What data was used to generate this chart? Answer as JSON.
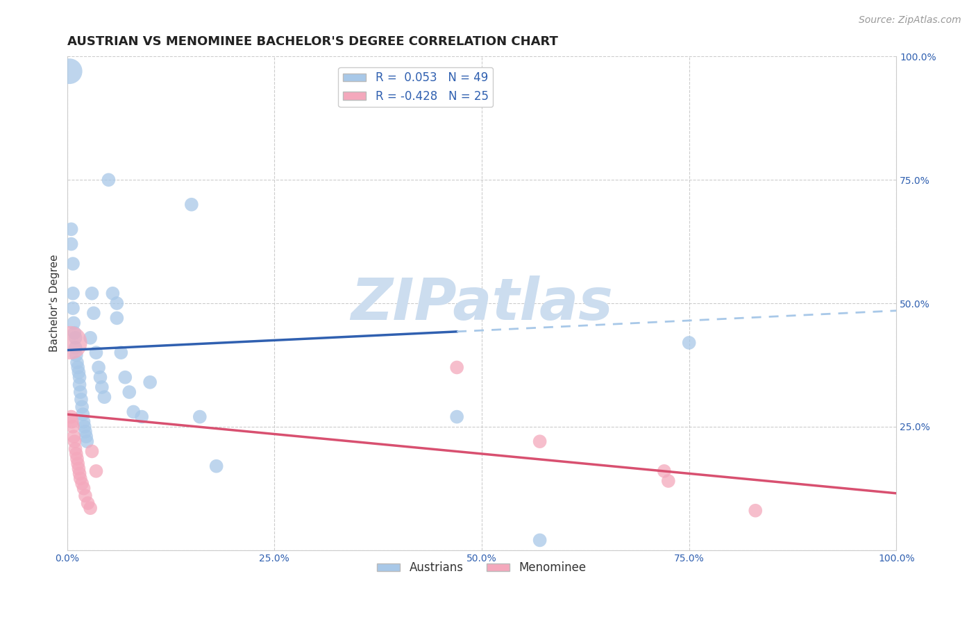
{
  "title": "AUSTRIAN VS MENOMINEE BACHELOR'S DEGREE CORRELATION CHART",
  "source": "Source: ZipAtlas.com",
  "ylabel": "Bachelor's Degree",
  "watermark": "ZIPatlas",
  "legend_blue_label": "Austrians",
  "legend_pink_label": "Menominee",
  "blue_R": 0.053,
  "blue_N": 49,
  "pink_R": -0.428,
  "pink_N": 25,
  "blue_color": "#a8c8e8",
  "pink_color": "#f4a8bc",
  "blue_line_color": "#3060b0",
  "pink_line_color": "#d85070",
  "blue_points": [
    [
      0.3,
      97.0
    ],
    [
      0.5,
      65.0
    ],
    [
      0.5,
      62.0
    ],
    [
      0.7,
      58.0
    ],
    [
      0.7,
      52.0
    ],
    [
      0.7,
      49.0
    ],
    [
      0.8,
      46.0
    ],
    [
      0.9,
      44.0
    ],
    [
      1.0,
      43.0
    ],
    [
      1.0,
      41.0
    ],
    [
      1.1,
      39.5
    ],
    [
      1.2,
      38.0
    ],
    [
      1.3,
      37.0
    ],
    [
      1.4,
      36.0
    ],
    [
      1.5,
      35.0
    ],
    [
      1.5,
      33.5
    ],
    [
      1.6,
      32.0
    ],
    [
      1.7,
      30.5
    ],
    [
      1.8,
      29.0
    ],
    [
      1.9,
      27.5
    ],
    [
      2.0,
      26.0
    ],
    [
      2.1,
      25.0
    ],
    [
      2.2,
      24.0
    ],
    [
      2.3,
      23.0
    ],
    [
      2.4,
      22.0
    ],
    [
      2.8,
      43.0
    ],
    [
      3.0,
      52.0
    ],
    [
      3.2,
      48.0
    ],
    [
      3.5,
      40.0
    ],
    [
      3.8,
      37.0
    ],
    [
      4.0,
      35.0
    ],
    [
      4.2,
      33.0
    ],
    [
      4.5,
      31.0
    ],
    [
      5.0,
      75.0
    ],
    [
      5.5,
      52.0
    ],
    [
      6.0,
      50.0
    ],
    [
      6.0,
      47.0
    ],
    [
      6.5,
      40.0
    ],
    [
      7.0,
      35.0
    ],
    [
      7.5,
      32.0
    ],
    [
      8.0,
      28.0
    ],
    [
      9.0,
      27.0
    ],
    [
      10.0,
      34.0
    ],
    [
      15.0,
      70.0
    ],
    [
      16.0,
      27.0
    ],
    [
      18.0,
      17.0
    ],
    [
      47.0,
      27.0
    ],
    [
      57.0,
      2.0
    ],
    [
      75.0,
      42.0
    ]
  ],
  "pink_points": [
    [
      0.4,
      42.0
    ],
    [
      0.5,
      27.0
    ],
    [
      0.6,
      26.0
    ],
    [
      0.7,
      25.0
    ],
    [
      0.8,
      23.0
    ],
    [
      0.9,
      22.0
    ],
    [
      1.0,
      20.5
    ],
    [
      1.1,
      19.5
    ],
    [
      1.2,
      18.5
    ],
    [
      1.3,
      17.5
    ],
    [
      1.4,
      16.5
    ],
    [
      1.5,
      15.5
    ],
    [
      1.6,
      14.5
    ],
    [
      1.8,
      13.5
    ],
    [
      2.0,
      12.5
    ],
    [
      2.2,
      11.0
    ],
    [
      2.5,
      9.5
    ],
    [
      2.8,
      8.5
    ],
    [
      3.0,
      20.0
    ],
    [
      3.5,
      16.0
    ],
    [
      47.0,
      37.0
    ],
    [
      57.0,
      22.0
    ],
    [
      72.0,
      16.0
    ],
    [
      72.5,
      14.0
    ],
    [
      83.0,
      8.0
    ]
  ],
  "blue_dot_sizes": [
    700,
    200,
    200,
    200,
    200,
    200,
    200,
    200,
    200,
    200,
    200,
    200,
    200,
    200,
    200,
    200,
    200,
    200,
    200,
    200,
    200,
    200,
    200,
    200,
    200,
    200,
    200,
    200,
    200,
    200,
    200,
    200,
    200,
    200,
    200,
    200,
    200,
    200,
    200,
    200,
    200,
    200,
    200,
    200,
    200,
    200,
    200,
    200,
    200
  ],
  "pink_dot_sizes": [
    1200,
    200,
    200,
    200,
    200,
    200,
    200,
    200,
    200,
    200,
    200,
    200,
    200,
    200,
    200,
    200,
    200,
    200,
    200,
    200,
    200,
    200,
    200,
    200,
    200
  ],
  "xlim": [
    0,
    100
  ],
  "ylim": [
    0,
    100
  ],
  "xticks": [
    0,
    25,
    50,
    75,
    100
  ],
  "xticklabels": [
    "0.0%",
    "25.0%",
    "50.0%",
    "75.0%",
    "100.0%"
  ],
  "ytick_right_labels": [
    "",
    "25.0%",
    "50.0%",
    "75.0%",
    "100.0%"
  ],
  "grid_color": "#cccccc",
  "background_color": "#ffffff",
  "title_fontsize": 13,
  "source_fontsize": 10,
  "axis_fontsize": 11,
  "tick_fontsize": 10,
  "legend_fontsize": 12,
  "watermark_color": "#ccddef",
  "watermark_fontsize": 60,
  "blue_solid_x_end": 47,
  "blue_line_intercept": 40.5,
  "blue_line_slope": 0.08,
  "pink_line_intercept": 27.5,
  "pink_line_slope": -0.16
}
